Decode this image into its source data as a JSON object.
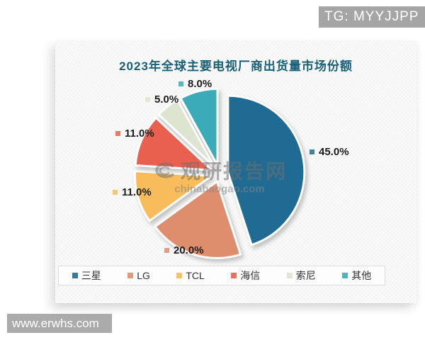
{
  "overlays": {
    "tg_badge": "TG: MYYJJPP",
    "site_badge": "www.erwhs.com",
    "watermark_cn": "观研报告网",
    "watermark_url": "chinabaogao.com"
  },
  "chart_data": {
    "type": "pie",
    "title": "2023年全球主要电视厂商出货量市场份额",
    "categories": [
      "三星",
      "LG",
      "TCL",
      "海信",
      "索尼",
      "其他"
    ],
    "values": [
      45.0,
      20.0,
      11.0,
      11.0,
      5.0,
      8.0
    ],
    "value_labels": [
      "45.0%",
      "20.0%",
      "11.0%",
      "11.0%",
      "5.0%",
      "8.0%"
    ],
    "unit": "%",
    "colors": [
      "#1f6b94",
      "#df8e6d",
      "#f8bd5a",
      "#e9614e",
      "#dde4d0",
      "#3cabb9"
    ],
    "start_angle_deg": 0,
    "direction": "clockwise",
    "exploded": true,
    "legend_position": "bottom",
    "title_color": "#176078"
  }
}
